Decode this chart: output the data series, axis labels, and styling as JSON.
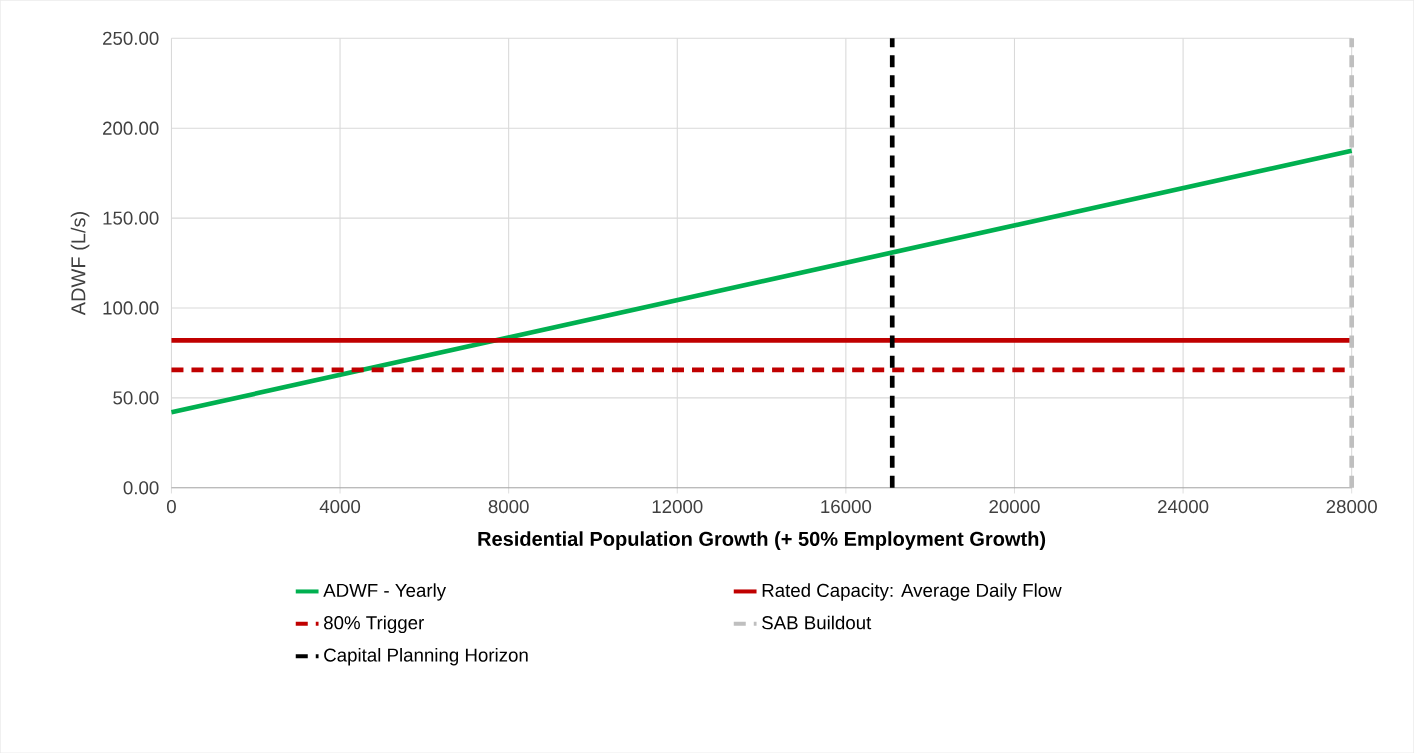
{
  "chart_data": {
    "type": "line",
    "xlabel": "Residential Population Growth (+ 50% Employment Growth)",
    "ylabel": "ADWF (L/s)",
    "xlim": [
      0,
      28000
    ],
    "xticks": [
      0,
      4000,
      8000,
      12000,
      16000,
      20000,
      24000,
      28000
    ],
    "ylim": [
      0,
      250
    ],
    "yticks": [
      {
        "value": 0,
        "label": "0.00"
      },
      {
        "value": 50,
        "label": "50.00"
      },
      {
        "value": 100,
        "label": "100.00"
      },
      {
        "value": 150,
        "label": "150.00"
      },
      {
        "value": 200,
        "label": "200.00"
      },
      {
        "value": 250,
        "label": "250.00"
      }
    ],
    "grid": true,
    "legend": "bottom",
    "series": [
      {
        "name": "ADWF - Yearly",
        "color": "#00b050",
        "line_style": "solid",
        "x": [
          0,
          28000
        ],
        "values": [
          42,
          187.5
        ]
      },
      {
        "name": "Rated Capacity: Average Daily Flow",
        "color": "#c00000",
        "line_style": "solid",
        "x": [
          0,
          28000
        ],
        "values": [
          82,
          82
        ]
      },
      {
        "name": "80% Trigger",
        "color": "#c00000",
        "line_style": "dashed",
        "x": [
          0,
          28000
        ],
        "values": [
          65.6,
          65.6
        ]
      },
      {
        "name": "SAB Buildout",
        "color": "#bfbfbf",
        "line_style": "dashed",
        "x": [
          28000,
          28000
        ],
        "values": [
          0,
          250
        ]
      },
      {
        "name": "Capital Planning Horizon",
        "color": "#000000",
        "line_style": "dashed",
        "x": [
          17100,
          17100
        ],
        "values": [
          0,
          250
        ]
      }
    ]
  }
}
